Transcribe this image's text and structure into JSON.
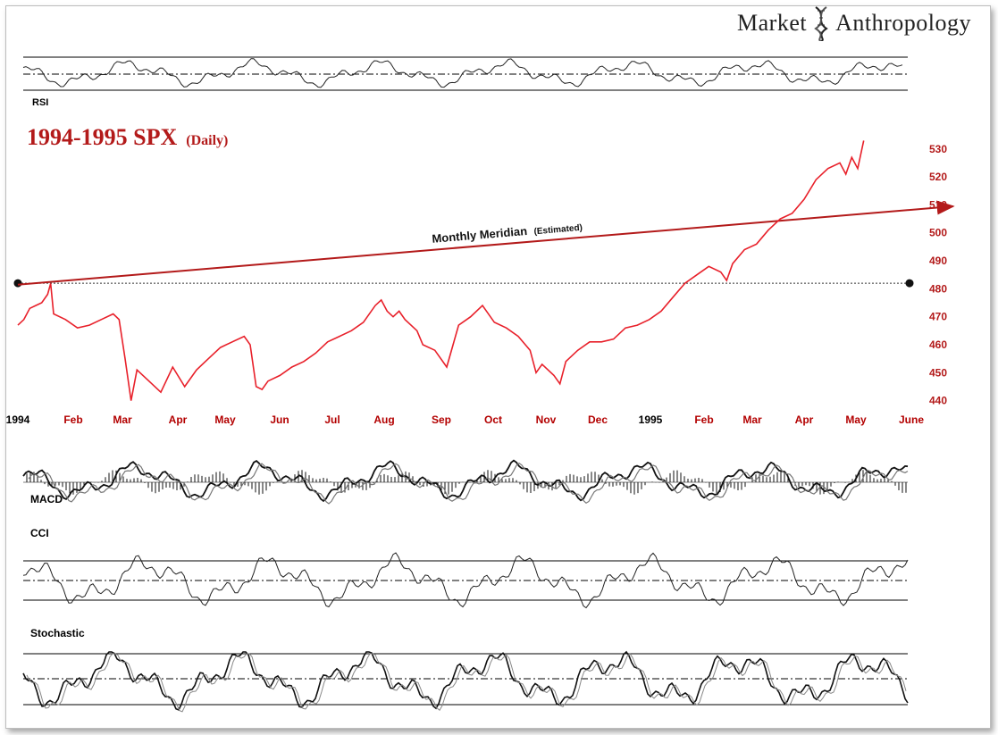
{
  "brand": {
    "word1": "Market",
    "word2": "Anthropology"
  },
  "chart_data": {
    "type": "line",
    "title": "1994-1995 SPX",
    "subtitle": "(Daily)",
    "y_ticks": [
      440,
      450,
      460,
      470,
      480,
      490,
      500,
      510,
      520,
      530
    ],
    "ylim": [
      437,
      536
    ],
    "x_labels": [
      "1994",
      "Feb",
      "Mar",
      "Apr",
      "May",
      "Jun",
      "Jul",
      "Aug",
      "Sep",
      "Oct",
      "Nov",
      "Dec",
      "1995",
      "Feb",
      "Mar",
      "Apr",
      "May",
      "June"
    ],
    "x_label_colors": [
      "#000000",
      "#b30000",
      "#b30000",
      "#b30000",
      "#b30000",
      "#b30000",
      "#b30000",
      "#b30000",
      "#b30000",
      "#b30000",
      "#b30000",
      "#b30000",
      "#000000",
      "#b30000",
      "#b30000",
      "#b30000",
      "#b30000",
      "#b30000"
    ],
    "series": [
      {
        "color": "#e8202a",
        "points": [
          [
            0,
            467
          ],
          [
            1,
            469
          ],
          [
            2,
            473
          ],
          [
            3,
            474
          ],
          [
            4,
            475
          ],
          [
            5,
            478
          ],
          [
            5.5,
            481.9
          ],
          [
            6,
            471
          ],
          [
            8,
            469
          ],
          [
            10,
            466
          ],
          [
            12,
            467
          ],
          [
            14,
            469
          ],
          [
            16,
            471
          ],
          [
            17,
            469
          ],
          [
            18,
            455
          ],
          [
            19,
            440
          ],
          [
            20,
            451
          ],
          [
            22,
            447
          ],
          [
            24,
            443
          ],
          [
            26,
            452
          ],
          [
            28,
            445
          ],
          [
            30,
            451
          ],
          [
            32,
            455
          ],
          [
            34,
            459
          ],
          [
            36,
            461
          ],
          [
            38,
            463
          ],
          [
            39,
            460
          ],
          [
            40,
            445
          ],
          [
            41,
            444
          ],
          [
            42,
            447
          ],
          [
            44,
            449
          ],
          [
            46,
            452
          ],
          [
            48,
            454
          ],
          [
            50,
            457
          ],
          [
            52,
            461
          ],
          [
            54,
            463
          ],
          [
            56,
            465
          ],
          [
            58,
            468
          ],
          [
            60,
            474
          ],
          [
            61,
            476
          ],
          [
            62,
            472
          ],
          [
            63,
            470
          ],
          [
            64,
            472
          ],
          [
            65,
            469
          ],
          [
            66,
            467
          ],
          [
            67,
            465
          ],
          [
            68,
            460
          ],
          [
            70,
            458
          ],
          [
            72,
            452
          ],
          [
            74,
            467
          ],
          [
            76,
            470
          ],
          [
            78,
            474
          ],
          [
            80,
            468
          ],
          [
            82,
            466
          ],
          [
            84,
            463
          ],
          [
            86,
            458
          ],
          [
            87,
            450
          ],
          [
            88,
            453
          ],
          [
            90,
            449
          ],
          [
            91,
            446
          ],
          [
            92,
            454
          ],
          [
            94,
            458
          ],
          [
            96,
            461
          ],
          [
            98,
            461
          ],
          [
            100,
            462
          ],
          [
            102,
            466
          ],
          [
            104,
            467
          ],
          [
            106,
            469
          ],
          [
            108,
            472
          ],
          [
            110,
            477
          ],
          [
            112,
            482
          ],
          [
            114,
            485
          ],
          [
            116,
            488
          ],
          [
            118,
            486
          ],
          [
            119,
            483
          ],
          [
            120,
            489
          ],
          [
            122,
            494
          ],
          [
            124,
            496
          ],
          [
            126,
            501
          ],
          [
            128,
            505
          ],
          [
            130,
            507
          ],
          [
            132,
            512
          ],
          [
            134,
            519
          ],
          [
            136,
            523
          ],
          [
            138,
            525
          ],
          [
            139,
            521
          ],
          [
            140,
            527
          ],
          [
            141,
            523
          ],
          [
            142,
            533
          ]
        ]
      }
    ],
    "annotations": {
      "meridian_label": "Monthly Meridian",
      "meridian_sub": "(Estimated)",
      "trend_line": {
        "from": [
          0,
          481.5
        ],
        "to": [
          149.5,
          509.5
        ]
      },
      "reference_level": 482
    },
    "indicators": [
      {
        "name": "RSI"
      },
      {
        "name": "MACD"
      },
      {
        "name": "CCI"
      },
      {
        "name": "Stochastic"
      }
    ]
  }
}
